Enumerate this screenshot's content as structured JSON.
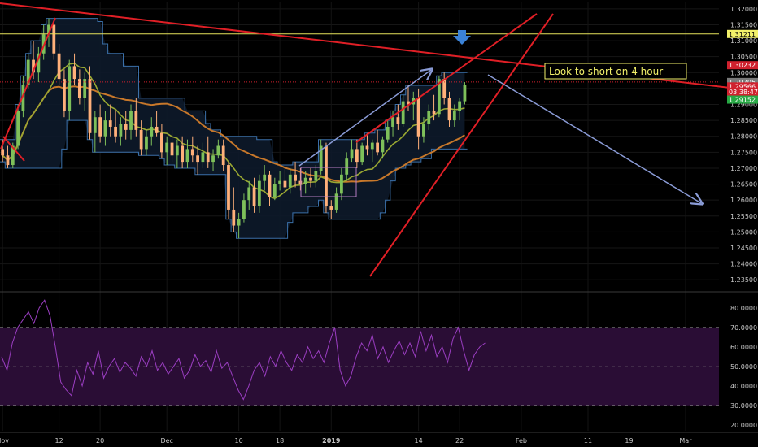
{
  "chart_data": [
    {
      "type": "line",
      "panel": "price",
      "title": "",
      "xlabel": "",
      "ylabel": "",
      "ylim": [
        1.232,
        1.322
      ],
      "y_ticks": [
        "1.32000",
        "1.31500",
        "1.31000",
        "1.30500",
        "1.30000",
        "1.29500",
        "1.29000",
        "1.28500",
        "1.28000",
        "1.27500",
        "1.27000",
        "1.26500",
        "1.26000",
        "1.25500",
        "1.25000",
        "1.24500",
        "1.24000",
        "1.23500"
      ],
      "x_ticks": [
        "Nov",
        "12",
        "20",
        "Dec",
        "10",
        "18",
        "2019",
        "14",
        "22",
        "Feb",
        "11",
        "19",
        "Mar"
      ],
      "x_tick_bar_index": [
        0,
        11,
        19,
        32,
        46,
        54,
        64,
        81,
        89,
        101,
        114,
        122,
        133
      ],
      "candles": [
        [
          1.276,
          1.279,
          1.272,
          1.274
        ],
        [
          1.274,
          1.277,
          1.27,
          1.271
        ],
        [
          1.271,
          1.278,
          1.27,
          1.277
        ],
        [
          1.277,
          1.29,
          1.276,
          1.288
        ],
        [
          1.288,
          1.299,
          1.286,
          1.296
        ],
        [
          1.296,
          1.306,
          1.295,
          1.304
        ],
        [
          1.304,
          1.31,
          1.298,
          1.3
        ],
        [
          1.3,
          1.308,
          1.297,
          1.306
        ],
        [
          1.306,
          1.315,
          1.304,
          1.312
        ],
        [
          1.312,
          1.317,
          1.308,
          1.315
        ],
        [
          1.315,
          1.316,
          1.304,
          1.306
        ],
        [
          1.306,
          1.309,
          1.296,
          1.298
        ],
        [
          1.298,
          1.301,
          1.286,
          1.288
        ],
        [
          1.288,
          1.304,
          1.285,
          1.302
        ],
        [
          1.302,
          1.306,
          1.296,
          1.298
        ],
        [
          1.298,
          1.301,
          1.29,
          1.292
        ],
        [
          1.292,
          1.3,
          1.288,
          1.298
        ],
        [
          1.298,
          1.302,
          1.279,
          1.281
        ],
        [
          1.281,
          1.288,
          1.275,
          1.286
        ],
        [
          1.286,
          1.29,
          1.278,
          1.28
        ],
        [
          1.28,
          1.288,
          1.277,
          1.285
        ],
        [
          1.285,
          1.29,
          1.28,
          1.283
        ],
        [
          1.283,
          1.288,
          1.278,
          1.28
        ],
        [
          1.28,
          1.286,
          1.277,
          1.284
        ],
        [
          1.284,
          1.288,
          1.279,
          1.282
        ],
        [
          1.282,
          1.29,
          1.279,
          1.288
        ],
        [
          1.288,
          1.292,
          1.28,
          1.282
        ],
        [
          1.282,
          1.285,
          1.274,
          1.276
        ],
        [
          1.276,
          1.282,
          1.274,
          1.28
        ],
        [
          1.28,
          1.286,
          1.277,
          1.283
        ],
        [
          1.283,
          1.288,
          1.28,
          1.281
        ],
        [
          1.281,
          1.284,
          1.273,
          1.275
        ],
        [
          1.275,
          1.28,
          1.271,
          1.278
        ],
        [
          1.278,
          1.282,
          1.272,
          1.274
        ],
        [
          1.274,
          1.279,
          1.27,
          1.277
        ],
        [
          1.277,
          1.28,
          1.27,
          1.272
        ],
        [
          1.272,
          1.279,
          1.27,
          1.276
        ],
        [
          1.276,
          1.28,
          1.272,
          1.274
        ],
        [
          1.274,
          1.277,
          1.268,
          1.272
        ],
        [
          1.272,
          1.278,
          1.27,
          1.275
        ],
        [
          1.275,
          1.28,
          1.27,
          1.272
        ],
        [
          1.272,
          1.276,
          1.269,
          1.274
        ],
        [
          1.274,
          1.279,
          1.273,
          1.277
        ],
        [
          1.277,
          1.279,
          1.269,
          1.271
        ],
        [
          1.271,
          1.272,
          1.254,
          1.257
        ],
        [
          1.257,
          1.264,
          1.25,
          1.252
        ],
        [
          1.252,
          1.256,
          1.248,
          1.254
        ],
        [
          1.254,
          1.262,
          1.253,
          1.26
        ],
        [
          1.26,
          1.266,
          1.257,
          1.264
        ],
        [
          1.264,
          1.267,
          1.256,
          1.258
        ],
        [
          1.258,
          1.268,
          1.256,
          1.266
        ],
        [
          1.266,
          1.271,
          1.263,
          1.268
        ],
        [
          1.268,
          1.269,
          1.258,
          1.261
        ],
        [
          1.261,
          1.267,
          1.26,
          1.265
        ],
        [
          1.265,
          1.269,
          1.263,
          1.266
        ],
        [
          1.266,
          1.27,
          1.262,
          1.264
        ],
        [
          1.264,
          1.27,
          1.262,
          1.268
        ],
        [
          1.268,
          1.272,
          1.264,
          1.266
        ],
        [
          1.266,
          1.27,
          1.263,
          1.265
        ],
        [
          1.265,
          1.269,
          1.262,
          1.267
        ],
        [
          1.267,
          1.27,
          1.264,
          1.266
        ],
        [
          1.266,
          1.271,
          1.264,
          1.269
        ],
        [
          1.269,
          1.279,
          1.268,
          1.277
        ],
        [
          1.277,
          1.278,
          1.256,
          1.258
        ],
        [
          1.258,
          1.26,
          1.254,
          1.257
        ],
        [
          1.257,
          1.264,
          1.256,
          1.262
        ],
        [
          1.262,
          1.27,
          1.26,
          1.268
        ],
        [
          1.268,
          1.275,
          1.266,
          1.273
        ],
        [
          1.273,
          1.279,
          1.272,
          1.276
        ],
        [
          1.276,
          1.279,
          1.27,
          1.272
        ],
        [
          1.272,
          1.278,
          1.271,
          1.277
        ],
        [
          1.277,
          1.281,
          1.274,
          1.276
        ],
        [
          1.276,
          1.279,
          1.272,
          1.278
        ],
        [
          1.278,
          1.282,
          1.274,
          1.275
        ],
        [
          1.275,
          1.28,
          1.273,
          1.279
        ],
        [
          1.279,
          1.285,
          1.278,
          1.283
        ],
        [
          1.283,
          1.288,
          1.28,
          1.286
        ],
        [
          1.286,
          1.29,
          1.282,
          1.284
        ],
        [
          1.284,
          1.293,
          1.283,
          1.291
        ],
        [
          1.291,
          1.296,
          1.288,
          1.29
        ],
        [
          1.29,
          1.294,
          1.285,
          1.292
        ],
        [
          1.292,
          1.295,
          1.276,
          1.28
        ],
        [
          1.28,
          1.286,
          1.278,
          1.284
        ],
        [
          1.284,
          1.29,
          1.282,
          1.288
        ],
        [
          1.288,
          1.293,
          1.285,
          1.287
        ],
        [
          1.287,
          1.299,
          1.286,
          1.298
        ],
        [
          1.298,
          1.3,
          1.29,
          1.292
        ],
        [
          1.292,
          1.294,
          1.283,
          1.285
        ],
        [
          1.285,
          1.29,
          1.283,
          1.288
        ],
        [
          1.288,
          1.292,
          1.285,
          1.291
        ],
        [
          1.291,
          1.297,
          1.29,
          1.296
        ]
      ],
      "overlays": {
        "ma_fast_color": "#9aa832",
        "ma_slow_color": "#c8782a",
        "channel_color": "#3a6fa8"
      },
      "price_labels": [
        {
          "value": 1.31211,
          "text": "1.31211",
          "bg": "#f2f06a",
          "fg": "#000000"
        },
        {
          "value": 1.30232,
          "text": "1.30232",
          "bg": "#d0212e",
          "fg": "#ffffff"
        },
        {
          "value": 1.29705,
          "text": "1.29705",
          "bg": "#7a7a7a",
          "fg": "#ffffff"
        },
        {
          "value": 1.29566,
          "text": "1.29566",
          "bg": "#d0212e",
          "fg": "#ffffff"
        },
        {
          "value": 1.294,
          "text": "03:38:47",
          "bg": "#d0212e",
          "fg": "#ffffff"
        },
        {
          "value": 1.29152,
          "text": "1.29152",
          "bg": "#27a844",
          "fg": "#ffffff"
        }
      ],
      "annotations": [
        {
          "text": "Look to short on 4 hour",
          "color": "#f2f06a"
        }
      ]
    },
    {
      "type": "line",
      "panel": "oscillator",
      "title": "",
      "ylim": [
        17,
        87
      ],
      "y_ticks": [
        "80.0000",
        "70.0000",
        "60.0000",
        "50.0000",
        "40.0000",
        "30.0000",
        "20.0000"
      ],
      "band": [
        30,
        70
      ],
      "values": [
        55,
        48,
        62,
        70,
        74,
        78,
        72,
        80,
        84,
        76,
        60,
        42,
        38,
        35,
        48,
        40,
        52,
        46,
        58,
        44,
        50,
        54,
        47,
        52,
        49,
        45,
        55,
        50,
        58,
        48,
        52,
        46,
        50,
        54,
        44,
        48,
        56,
        50,
        53,
        47,
        58,
        49,
        52,
        45,
        38,
        33,
        40,
        48,
        52,
        45,
        55,
        50,
        58,
        52,
        48,
        56,
        52,
        60,
        54,
        58,
        52,
        62,
        70,
        48,
        40,
        45,
        55,
        62,
        58,
        66,
        54,
        60,
        52,
        58,
        63,
        56,
        62,
        55,
        68,
        58,
        66,
        55,
        60,
        52,
        64,
        70,
        58,
        48,
        56,
        60,
        62
      ],
      "line_color": "#9b3ec2",
      "band_fill": "#2a0d35"
    }
  ]
}
